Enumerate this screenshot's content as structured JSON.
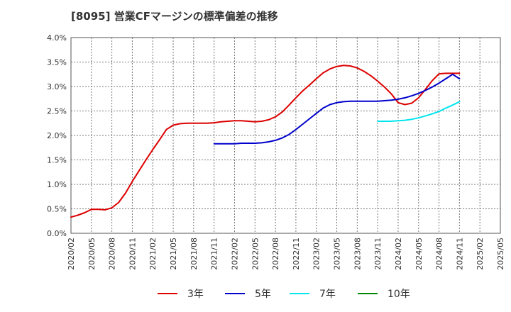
{
  "chart_data": {
    "type": "line",
    "title": "[8095]  営業CFマージンの標準偏差の推移",
    "xlabel": "",
    "ylabel": "",
    "ylim": [
      0,
      0.04
    ],
    "grid": true,
    "legend_position": "bottom",
    "x_tick_labels": [
      "2020/02",
      "2020/05",
      "2020/08",
      "2020/11",
      "2021/02",
      "2021/05",
      "2021/08",
      "2021/11",
      "2022/02",
      "2022/05",
      "2022/08",
      "2022/11",
      "2023/02",
      "2023/05",
      "2023/08",
      "2023/11",
      "2024/02",
      "2024/05",
      "2024/08",
      "2024/11",
      "2025/02",
      "2025/05"
    ],
    "y_tick_labels": [
      "0.0%",
      "0.5%",
      "1.0%",
      "1.5%",
      "2.0%",
      "2.5%",
      "3.0%",
      "3.5%",
      "4.0%"
    ],
    "series": [
      {
        "name": "3年",
        "color": "#dd0000",
        "x": [
          "2020/02",
          "2020/03",
          "2020/04",
          "2020/05",
          "2020/06",
          "2020/07",
          "2020/08",
          "2020/09",
          "2020/10",
          "2020/11",
          "2020/12",
          "2021/01",
          "2021/02",
          "2021/03",
          "2021/04",
          "2021/05",
          "2021/06",
          "2021/07",
          "2021/08",
          "2021/09",
          "2021/10",
          "2021/11",
          "2021/12",
          "2022/01",
          "2022/02",
          "2022/03",
          "2022/04",
          "2022/05",
          "2022/06",
          "2022/07",
          "2022/08",
          "2022/09",
          "2022/10",
          "2022/11",
          "2022/12",
          "2023/01",
          "2023/02",
          "2023/03",
          "2023/04",
          "2023/05",
          "2023/06",
          "2023/07",
          "2023/08",
          "2023/09",
          "2023/10",
          "2023/11",
          "2023/12",
          "2024/01",
          "2024/02",
          "2024/03",
          "2024/04",
          "2024/05",
          "2024/06",
          "2024/07",
          "2024/08",
          "2024/09",
          "2024/10",
          "2024/11"
        ],
        "values": [
          0.0033,
          0.0037,
          0.0042,
          0.0049,
          0.0049,
          0.0048,
          0.0052,
          0.0063,
          0.0082,
          0.0106,
          0.0128,
          0.015,
          0.0171,
          0.0191,
          0.0212,
          0.0221,
          0.0224,
          0.0225,
          0.0225,
          0.0225,
          0.0225,
          0.0226,
          0.0228,
          0.0229,
          0.023,
          0.023,
          0.0229,
          0.0228,
          0.0229,
          0.0232,
          0.0238,
          0.0248,
          0.0262,
          0.0277,
          0.0291,
          0.0303,
          0.0316,
          0.0328,
          0.0336,
          0.0341,
          0.0343,
          0.0342,
          0.0338,
          0.0331,
          0.0322,
          0.0311,
          0.0299,
          0.0285,
          0.0267,
          0.0263,
          0.0266,
          0.0277,
          0.0294,
          0.0312,
          0.0326,
          0.0327,
          0.0327,
          0.0327
        ]
      },
      {
        "name": "5年",
        "color": "#0000cc",
        "x": [
          "2021/11",
          "2021/12",
          "2022/01",
          "2022/02",
          "2022/03",
          "2022/04",
          "2022/05",
          "2022/06",
          "2022/07",
          "2022/08",
          "2022/09",
          "2022/10",
          "2022/11",
          "2022/12",
          "2023/01",
          "2023/02",
          "2023/03",
          "2023/04",
          "2023/05",
          "2023/06",
          "2023/07",
          "2023/08",
          "2023/09",
          "2023/10",
          "2023/11",
          "2023/12",
          "2024/01",
          "2024/02",
          "2024/03",
          "2024/04",
          "2024/05",
          "2024/06",
          "2024/07",
          "2024/08",
          "2024/09",
          "2024/10",
          "2024/11"
        ],
        "values": [
          0.0183,
          0.0183,
          0.0183,
          0.0183,
          0.0184,
          0.0184,
          0.0184,
          0.0185,
          0.0187,
          0.019,
          0.0195,
          0.0202,
          0.0212,
          0.0223,
          0.0234,
          0.0245,
          0.0256,
          0.0263,
          0.0267,
          0.0269,
          0.027,
          0.027,
          0.027,
          0.027,
          0.027,
          0.0271,
          0.0272,
          0.0274,
          0.0277,
          0.0281,
          0.0286,
          0.0292,
          0.0299,
          0.0307,
          0.0316,
          0.0325,
          0.0316
        ]
      },
      {
        "name": "7年",
        "color": "#00e5ee",
        "x": [
          "2023/11",
          "2023/12",
          "2024/01",
          "2024/02",
          "2024/03",
          "2024/04",
          "2024/05",
          "2024/06",
          "2024/07",
          "2024/08",
          "2024/09",
          "2024/10",
          "2024/11"
        ],
        "values": [
          0.0229,
          0.0229,
          0.0229,
          0.023,
          0.0231,
          0.0233,
          0.0236,
          0.024,
          0.0244,
          0.0249,
          0.0256,
          0.0262,
          0.0269
        ]
      },
      {
        "name": "10年",
        "color": "#008800",
        "x": [],
        "values": []
      }
    ]
  }
}
